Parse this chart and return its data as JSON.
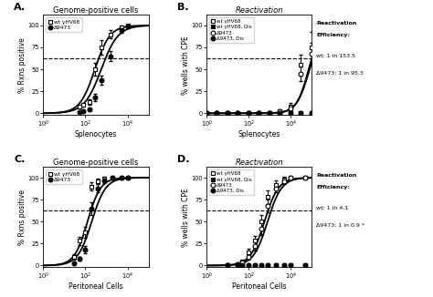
{
  "panel_A": {
    "title": "Genome-positive cells",
    "xlabel": "Splenocytes",
    "ylabel": "% Rxns positive",
    "legend": [
      "wt γHV68",
      "Δ9473"
    ],
    "wt_x": [
      50,
      80,
      150,
      300,
      600,
      1500,
      5000,
      10000
    ],
    "wt_y": [
      8,
      10,
      13,
      50,
      75,
      90,
      98,
      100
    ],
    "wt_err": [
      2,
      2,
      3,
      7,
      8,
      5,
      2,
      1
    ],
    "d9473_x": [
      50,
      80,
      150,
      300,
      600,
      1500,
      5000,
      10000
    ],
    "d9473_y": [
      1,
      2,
      4,
      18,
      38,
      65,
      95,
      99
    ],
    "d9473_err": [
      0,
      1,
      1,
      4,
      5,
      6,
      3,
      1
    ],
    "wt_sigmoid": {
      "x_mid": 2.45,
      "k": 2.8
    },
    "d9_sigmoid": {
      "x_mid": 2.75,
      "k": 2.5
    },
    "dashed_y": 63,
    "xlim": [
      1,
      100000
    ],
    "ylim": [
      -2,
      112
    ],
    "yticks": [
      0,
      25,
      50,
      75,
      100
    ],
    "label": "A."
  },
  "panel_B": {
    "title": "Reactivation",
    "xlabel": "Splenocytes",
    "ylabel": "% wells with CPE",
    "legend": [
      "wt γHV68",
      "wt γHV68, Dis",
      "Δ9473",
      "Δ9473, Dis"
    ],
    "wt_x": [
      1,
      3,
      10,
      30,
      100,
      300,
      1000,
      3000,
      10000,
      30000,
      100000
    ],
    "wt_y": [
      0,
      0,
      0,
      0,
      0,
      0,
      0,
      2,
      8,
      55,
      75
    ],
    "wt_err": [
      0,
      0,
      0,
      0,
      0,
      0,
      0,
      1,
      4,
      12,
      18
    ],
    "wt_dis_x": [
      1,
      3,
      10,
      30,
      100,
      300,
      1000,
      3000,
      10000,
      30000,
      100000
    ],
    "wt_dis_y": [
      0,
      0,
      0,
      0,
      0,
      0,
      0,
      0,
      0,
      0,
      0
    ],
    "wt_dis_err": [
      0,
      0,
      0,
      0,
      0,
      0,
      0,
      0,
      0,
      0,
      0
    ],
    "d9473_x": [
      1,
      3,
      10,
      30,
      100,
      300,
      1000,
      3000,
      10000,
      30000,
      100000
    ],
    "d9473_y": [
      0,
      0,
      0,
      0,
      0,
      0,
      0,
      2,
      6,
      45,
      68
    ],
    "d9473_err": [
      0,
      0,
      0,
      0,
      0,
      0,
      0,
      1,
      2,
      8,
      12
    ],
    "d9473_dis_x": [
      1,
      3,
      10,
      30,
      100,
      300,
      1000,
      3000,
      10000,
      30000,
      100000
    ],
    "d9473_dis_y": [
      0,
      0,
      0,
      0,
      0,
      0,
      0,
      0,
      0,
      0,
      0
    ],
    "d9473_dis_err": [
      0,
      0,
      0,
      0,
      0,
      0,
      0,
      0,
      0,
      0,
      0
    ],
    "wt_sigmoid": {
      "x_mid": 4.85,
      "k": 3.5
    },
    "d9_sigmoid": {
      "x_mid": 4.9,
      "k": 3.2
    },
    "dashed_y": 63,
    "xlim": [
      1,
      100000
    ],
    "ylim": [
      -2,
      112
    ],
    "yticks": [
      0,
      25,
      50,
      75,
      100
    ],
    "annotation1": "Reactivation",
    "annotation2": "Efficiency:",
    "annotation3": "wt: 1 in 153.5",
    "annotation4": "Δ9473: 1 in 95.3",
    "label": "B."
  },
  "panel_C": {
    "title": "Genome-positive cells",
    "xlabel": "Peritoneal Cells",
    "ylabel": "% Rxns positive",
    "legend": [
      "wt γHV68",
      "Δ9473"
    ],
    "wt_x": [
      30,
      50,
      100,
      200,
      400,
      800,
      2000,
      5000,
      10000
    ],
    "wt_y": [
      10,
      28,
      38,
      90,
      96,
      99,
      100,
      100,
      100
    ],
    "wt_err": [
      3,
      5,
      6,
      5,
      3,
      2,
      1,
      1,
      1
    ],
    "d9473_x": [
      30,
      50,
      100,
      200,
      400,
      800,
      2000,
      5000,
      10000
    ],
    "d9473_y": [
      3,
      8,
      18,
      65,
      88,
      97,
      100,
      100,
      100
    ],
    "d9473_err": [
      1,
      2,
      4,
      7,
      5,
      3,
      1,
      1,
      1
    ],
    "wt_sigmoid": {
      "x_mid": 2.1,
      "k": 3.2
    },
    "d9_sigmoid": {
      "x_mid": 2.3,
      "k": 3.0
    },
    "dashed_y": 63,
    "xlim": [
      1,
      100000
    ],
    "ylim": [
      -2,
      112
    ],
    "yticks": [
      0,
      25,
      50,
      75,
      100
    ],
    "label": "C."
  },
  "panel_D": {
    "title": "Reactivation",
    "xlabel": "Peritoneal Cells",
    "ylabel": "% wells with CPE",
    "legend": [
      "wt γHV68",
      "wt γHV68, Dis",
      "Δ9473",
      "Δ9473, Dis"
    ],
    "wt_x": [
      10,
      30,
      50,
      100,
      200,
      400,
      800,
      2000,
      5000,
      10000,
      50000
    ],
    "wt_y": [
      0,
      2,
      5,
      15,
      28,
      50,
      78,
      92,
      98,
      100,
      100
    ],
    "wt_err": [
      0,
      1,
      2,
      4,
      6,
      8,
      8,
      5,
      3,
      1,
      1
    ],
    "wt_dis_x": [
      10,
      30,
      50,
      100,
      200,
      400,
      800,
      2000,
      5000,
      10000,
      50000
    ],
    "wt_dis_y": [
      0,
      0,
      0,
      0,
      0,
      0,
      0,
      0,
      0,
      0,
      0
    ],
    "wt_dis_err": [
      0,
      0,
      0,
      0,
      0,
      0,
      0,
      0,
      0,
      0,
      0
    ],
    "d9473_x": [
      10,
      30,
      50,
      100,
      200,
      400,
      800,
      2000,
      5000,
      10000,
      50000
    ],
    "d9473_y": [
      0,
      2,
      4,
      10,
      22,
      42,
      68,
      88,
      96,
      100,
      100
    ],
    "d9473_err": [
      0,
      1,
      1,
      3,
      5,
      7,
      7,
      5,
      3,
      1,
      1
    ],
    "d9473_dis_x": [
      10,
      30,
      50,
      100,
      200,
      400,
      800,
      2000,
      5000,
      10000,
      50000
    ],
    "d9473_dis_y": [
      0,
      0,
      0,
      0,
      0,
      0,
      0,
      0,
      0,
      0,
      0
    ],
    "d9473_dis_err": [
      0,
      0,
      0,
      0,
      0,
      0,
      0,
      0,
      0,
      0,
      0
    ],
    "wt_sigmoid": {
      "x_mid": 2.75,
      "k": 3.0
    },
    "d9_sigmoid": {
      "x_mid": 2.9,
      "k": 3.0
    },
    "dashed_y": 63,
    "xlim": [
      1,
      100000
    ],
    "ylim": [
      -2,
      112
    ],
    "yticks": [
      0,
      25,
      50,
      75,
      100
    ],
    "annotation1": "Reactivation",
    "annotation2": "Efficiency:",
    "annotation3": "wt: 1 in 4.1",
    "annotation4": "Δ9473: 1 in 0.9 *",
    "label": "D."
  }
}
